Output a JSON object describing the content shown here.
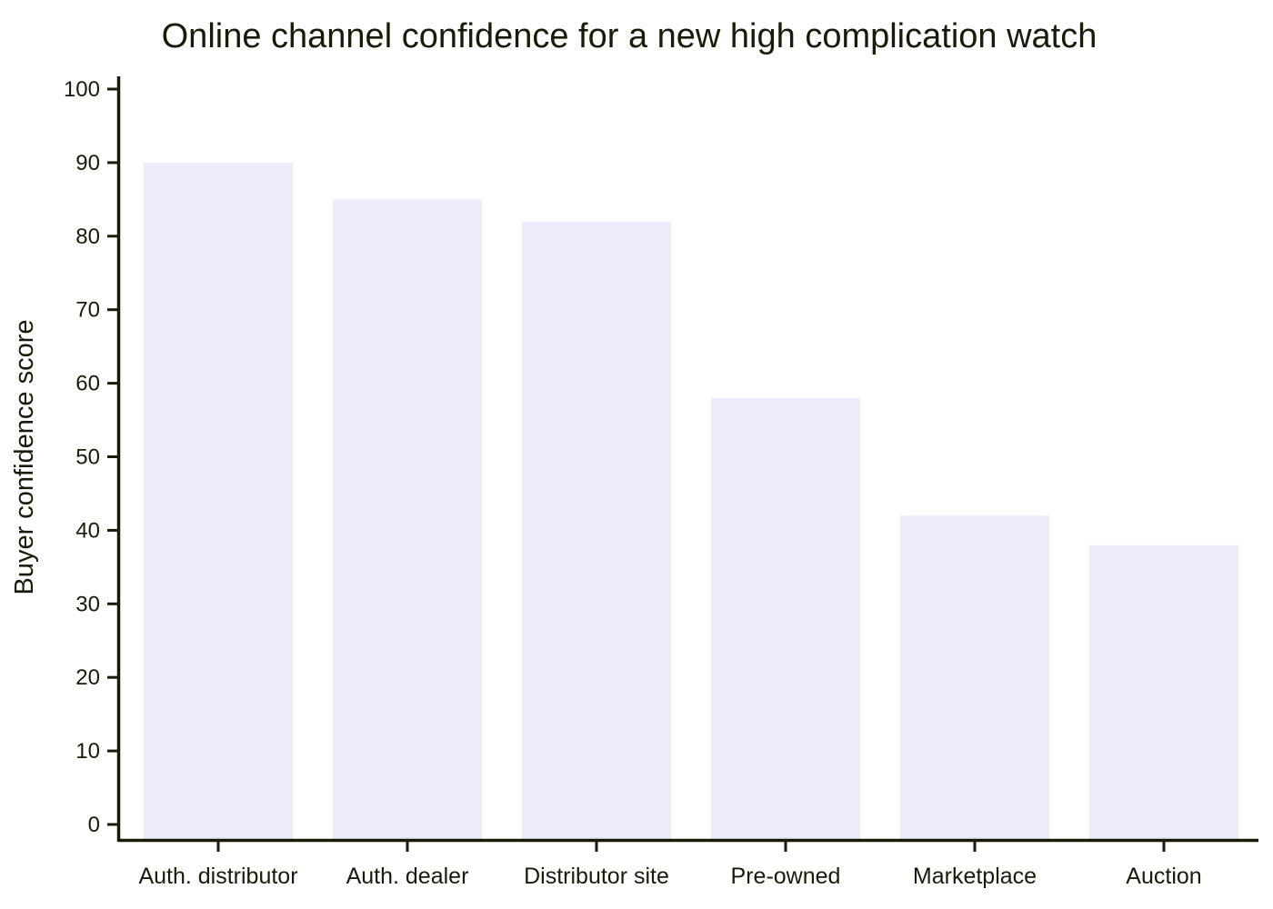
{
  "chart_data": {
    "type": "bar",
    "title": "Online channel confidence for a new high complication watch",
    "xlabel": "",
    "ylabel": "Buyer confidence score",
    "categories": [
      "Auth. distributor",
      "Auth. dealer",
      "Distributor site",
      "Pre-owned",
      "Marketplace",
      "Auction"
    ],
    "values": [
      90,
      85,
      82,
      58,
      42,
      38
    ],
    "ylim": [
      0,
      100
    ],
    "yticks": [
      "0",
      "10",
      "20",
      "30",
      "40",
      "50",
      "60",
      "70",
      "80",
      "90",
      "100"
    ],
    "grid": false,
    "bar_color": "#ececfd",
    "axis_color": "#1a1a0a"
  }
}
